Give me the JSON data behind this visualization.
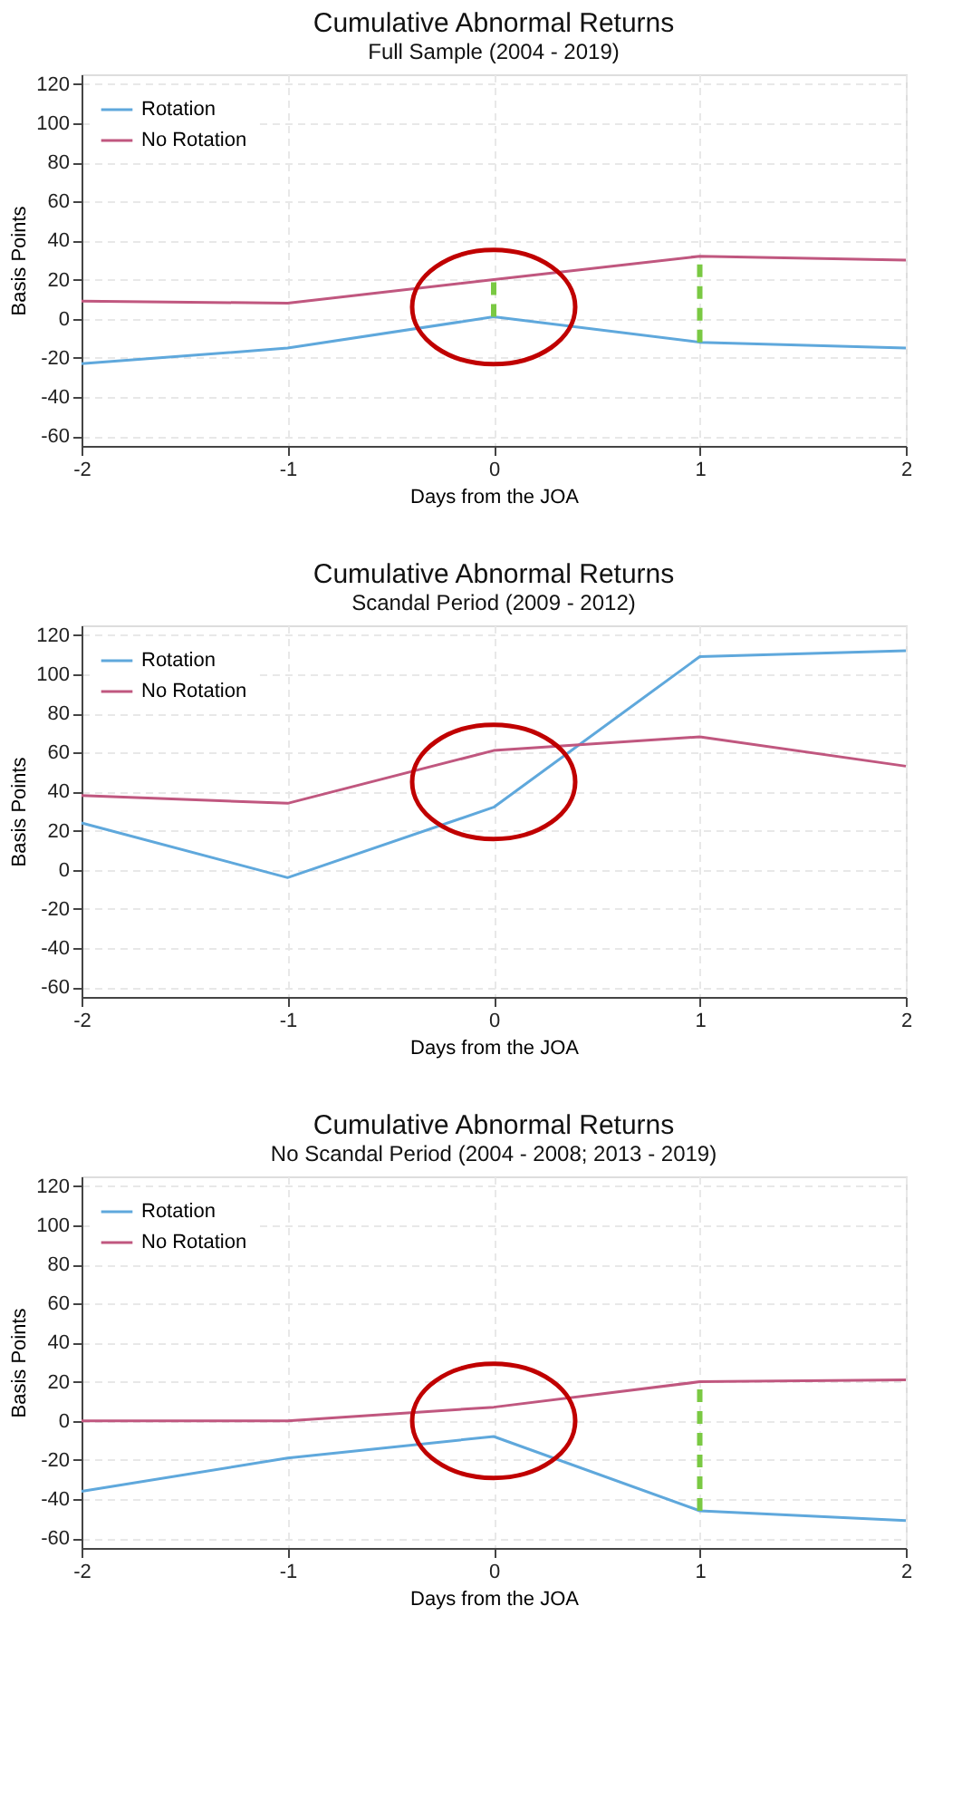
{
  "chart_data": [
    {
      "type": "line",
      "title": "Cumulative Abnormal Returns",
      "subtitle": "Full Sample (2004 - 2019)",
      "xlabel": "Days from the JOA",
      "ylabel": "Basis Points",
      "x": [
        -2,
        -1,
        0,
        1,
        2
      ],
      "xlim": [
        -2,
        2
      ],
      "xticks": [
        -2,
        -1,
        0,
        1,
        2
      ],
      "ylim": [
        -65,
        125
      ],
      "yticks": [
        -60,
        -40,
        -20,
        0,
        20,
        40,
        60,
        80,
        100,
        120
      ],
      "grid": true,
      "legend": "top left",
      "series": [
        {
          "name": "Rotation",
          "color": "#5fa8dc",
          "values": [
            -23,
            -15,
            1,
            -12,
            -15
          ]
        },
        {
          "name": "No Rotation",
          "color": "#c0577f",
          "values": [
            9,
            8,
            20,
            32,
            30
          ]
        }
      ]
    },
    {
      "type": "line",
      "title": "Cumulative Abnormal Returns",
      "subtitle": "Scandal Period (2009 - 2012)",
      "xlabel": "Days from the JOA",
      "ylabel": "Basis Points",
      "x": [
        -2,
        -1,
        0,
        1,
        2
      ],
      "xlim": [
        -2,
        2
      ],
      "xticks": [
        -2,
        -1,
        0,
        1,
        2
      ],
      "ylim": [
        -65,
        125
      ],
      "yticks": [
        -60,
        -40,
        -20,
        0,
        20,
        40,
        60,
        80,
        100,
        120
      ],
      "grid": true,
      "legend": "top left",
      "series": [
        {
          "name": "Rotation",
          "color": "#5fa8dc",
          "values": [
            24,
            -4,
            32,
            109,
            112
          ]
        },
        {
          "name": "No Rotation",
          "color": "#c0577f",
          "values": [
            38,
            34,
            61,
            68,
            53
          ]
        }
      ]
    },
    {
      "type": "line",
      "title": "Cumulative Abnormal Returns",
      "subtitle": "No Scandal Period (2004 - 2008; 2013 - 2019)",
      "xlabel": "Days from the JOA",
      "ylabel": "Basis Points",
      "x": [
        -2,
        -1,
        0,
        1,
        2
      ],
      "xlim": [
        -2,
        2
      ],
      "xticks": [
        -2,
        -1,
        0,
        1,
        2
      ],
      "ylim": [
        -65,
        125
      ],
      "yticks": [
        -60,
        -40,
        -20,
        0,
        20,
        40,
        60,
        80,
        100,
        120
      ],
      "grid": true,
      "legend": "top left",
      "series": [
        {
          "name": "Rotation",
          "color": "#5fa8dc",
          "values": [
            -36,
            -19,
            -8,
            -46,
            -51
          ]
        },
        {
          "name": "No Rotation",
          "color": "#c0577f",
          "values": [
            0,
            0,
            7,
            20,
            21
          ]
        }
      ]
    }
  ]
}
